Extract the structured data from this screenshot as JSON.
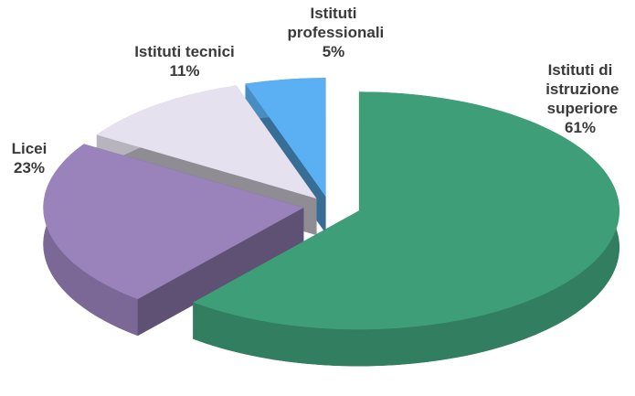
{
  "chart_data": {
    "type": "pie3d",
    "categories": [
      "Istituti di istruzione superiore",
      "Licei",
      "Istituti tecnici",
      "Istituti professionali"
    ],
    "values": [
      61,
      23,
      11,
      5
    ],
    "value_labels": [
      "61%",
      "23%",
      "11%",
      "5%"
    ],
    "colors": [
      "#3d9e78",
      "#9a82bb",
      "#e6e1ee",
      "#5ab0f2"
    ]
  }
}
